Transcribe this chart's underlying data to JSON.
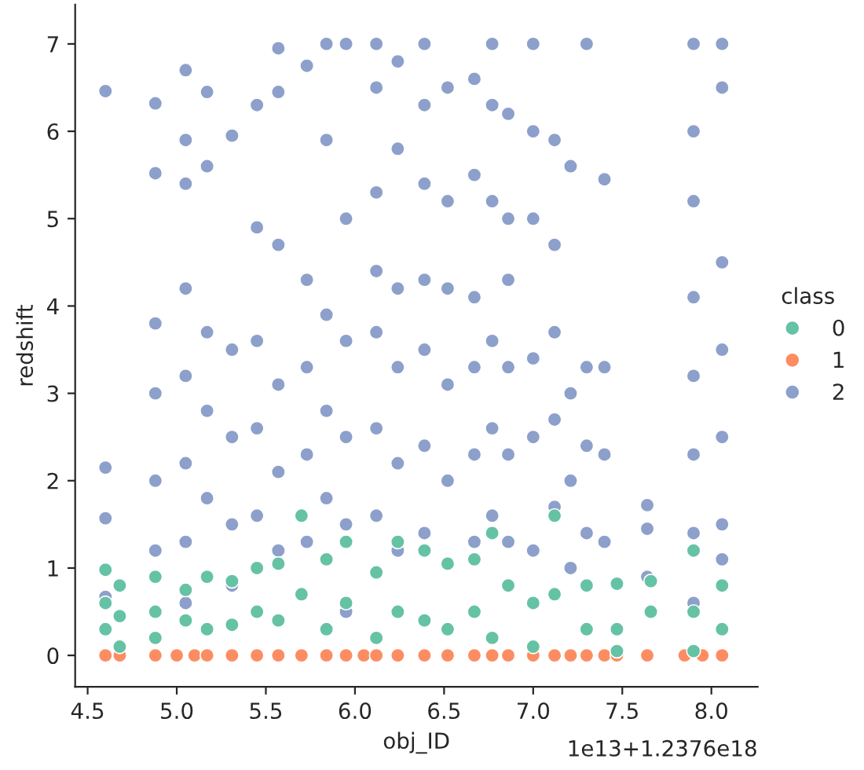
{
  "chart_data": {
    "type": "scatter",
    "xlabel": "obj_ID",
    "ylabel": "redshift",
    "legend_title": "class",
    "legend": "right",
    "marker": "circle",
    "grid": false,
    "xlim": [
      4.43,
      8.26
    ],
    "ylim": [
      -0.36,
      7.45
    ],
    "xticks": [
      4.5,
      {
        "value": 5,
        "label": "5.0"
      },
      5.5,
      {
        "value": 6,
        "label": "6.0"
      },
      6.5,
      {
        "value": 7,
        "label": "7.0"
      },
      7.5,
      {
        "value": 8,
        "label": "8.0"
      }
    ],
    "yticks": [
      0,
      1,
      2,
      3,
      4,
      5,
      6,
      7
    ],
    "annotations": [
      "1e13+1.2376e18"
    ],
    "series": [
      {
        "name": "0",
        "color": "#66c2a5",
        "x": [
          4.6,
          4.6,
          4.6,
          4.68,
          4.68,
          4.68,
          4.88,
          4.88,
          4.88,
          5.05,
          5.05,
          5.17,
          5.17,
          5.31,
          5.31,
          5.45,
          5.45,
          5.57,
          5.57,
          5.7,
          5.7,
          5.84,
          5.84,
          5.95,
          5.95,
          6.12,
          6.12,
          6.24,
          6.24,
          6.39,
          6.39,
          6.52,
          6.52,
          6.67,
          6.67,
          6.77,
          6.77,
          6.86,
          7.0,
          7.0,
          7.12,
          7.12,
          7.3,
          7.3,
          7.47,
          7.47,
          7.47,
          7.66,
          7.66,
          7.9,
          7.9,
          7.9,
          8.06,
          8.06
        ],
        "values": [
          0.98,
          0.6,
          0.3,
          0.8,
          0.45,
          0.1,
          0.9,
          0.5,
          0.2,
          0.75,
          0.4,
          0.9,
          0.3,
          0.85,
          0.35,
          1.0,
          0.5,
          1.05,
          0.4,
          1.6,
          0.7,
          1.1,
          0.3,
          1.3,
          0.6,
          0.95,
          0.2,
          1.3,
          0.5,
          1.2,
          0.4,
          1.05,
          0.3,
          1.1,
          0.5,
          1.4,
          0.2,
          0.8,
          0.6,
          0.1,
          1.6,
          0.7,
          0.8,
          0.3,
          0.82,
          0.3,
          0.05,
          0.85,
          0.5,
          1.2,
          0.5,
          0.05,
          0.8,
          0.3
        ]
      },
      {
        "name": "1",
        "color": "#fc8d62",
        "x": [
          4.6,
          4.68,
          4.88,
          5.0,
          5.1,
          5.17,
          5.31,
          5.45,
          5.57,
          5.7,
          5.84,
          5.95,
          6.05,
          6.12,
          6.24,
          6.39,
          6.52,
          6.67,
          6.77,
          6.86,
          7.0,
          7.12,
          7.21,
          7.3,
          7.4,
          7.47,
          7.64,
          7.85,
          7.95,
          8.06
        ],
        "values": [
          0,
          0,
          0,
          0,
          0,
          0,
          0,
          0,
          0,
          0,
          0,
          0,
          0,
          0,
          0,
          0,
          0,
          0,
          0,
          0,
          0,
          0,
          0,
          0,
          0,
          0,
          0,
          0,
          0,
          0
        ]
      },
      {
        "name": "2",
        "color": "#8da0cb",
        "x": [
          4.6,
          4.6,
          4.6,
          4.6,
          4.88,
          4.88,
          4.88,
          4.88,
          4.88,
          4.88,
          5.05,
          5.05,
          5.05,
          5.05,
          5.05,
          5.05,
          5.05,
          5.05,
          5.17,
          5.17,
          5.17,
          5.17,
          5.17,
          5.31,
          5.31,
          5.31,
          5.31,
          5.31,
          5.45,
          5.45,
          5.45,
          5.45,
          5.45,
          5.57,
          5.57,
          5.57,
          5.57,
          5.57,
          5.57,
          5.73,
          5.73,
          5.73,
          5.73,
          5.73,
          5.84,
          5.84,
          5.84,
          5.84,
          5.84,
          5.95,
          5.95,
          5.95,
          5.95,
          5.95,
          5.95,
          6.12,
          6.12,
          6.12,
          6.12,
          6.12,
          6.12,
          6.12,
          6.24,
          6.24,
          6.24,
          6.24,
          6.24,
          6.24,
          6.39,
          6.39,
          6.39,
          6.39,
          6.39,
          6.39,
          6.39,
          6.52,
          6.52,
          6.52,
          6.52,
          6.52,
          6.67,
          6.67,
          6.67,
          6.67,
          6.67,
          6.67,
          6.77,
          6.77,
          6.77,
          6.77,
          6.77,
          6.77,
          6.86,
          6.86,
          6.86,
          6.86,
          6.86,
          6.86,
          7.0,
          7.0,
          7.0,
          7.0,
          7.0,
          7.0,
          7.12,
          7.12,
          7.12,
          7.12,
          7.12,
          7.21,
          7.21,
          7.21,
          7.21,
          7.3,
          7.3,
          7.3,
          7.3,
          7.4,
          7.4,
          7.4,
          7.4,
          7.64,
          7.64,
          7.64,
          7.9,
          7.9,
          7.9,
          7.9,
          7.9,
          7.9,
          7.9,
          7.9,
          8.06,
          8.06,
          8.06,
          8.06,
          8.06,
          8.06,
          8.06
        ],
        "values": [
          6.46,
          2.15,
          1.57,
          0.67,
          6.32,
          5.52,
          3.8,
          3.0,
          2.0,
          1.2,
          6.7,
          5.9,
          5.4,
          4.2,
          3.2,
          2.2,
          1.3,
          0.6,
          6.45,
          5.6,
          3.7,
          2.8,
          1.8,
          5.95,
          3.5,
          2.5,
          1.5,
          0.8,
          6.3,
          4.9,
          3.6,
          2.6,
          1.6,
          6.95,
          6.45,
          4.7,
          3.1,
          2.1,
          1.2,
          6.75,
          4.3,
          3.3,
          2.3,
          1.3,
          7.0,
          5.9,
          3.9,
          2.8,
          1.8,
          7.0,
          5.0,
          3.6,
          2.5,
          1.5,
          0.5,
          7.0,
          6.5,
          5.3,
          4.4,
          3.7,
          2.6,
          1.6,
          6.8,
          5.8,
          4.2,
          3.3,
          2.2,
          1.2,
          7.0,
          6.3,
          5.4,
          4.3,
          3.5,
          2.4,
          1.4,
          6.5,
          5.2,
          4.2,
          3.1,
          2.0,
          6.6,
          5.5,
          4.1,
          3.3,
          2.3,
          1.3,
          7.0,
          6.3,
          5.2,
          3.6,
          2.6,
          1.6,
          6.2,
          5.0,
          4.3,
          3.3,
          2.3,
          1.3,
          7.0,
          6.0,
          5.0,
          3.4,
          2.5,
          1.2,
          5.9,
          4.7,
          3.7,
          2.7,
          1.7,
          5.6,
          3.0,
          2.0,
          1.0,
          7.0,
          3.3,
          2.4,
          1.4,
          5.45,
          3.3,
          2.3,
          1.3,
          1.72,
          1.45,
          0.9,
          7.0,
          6.0,
          5.2,
          4.1,
          3.2,
          2.3,
          1.4,
          0.6,
          7.0,
          6.5,
          4.5,
          3.5,
          2.5,
          1.5,
          1.1
        ]
      }
    ]
  }
}
